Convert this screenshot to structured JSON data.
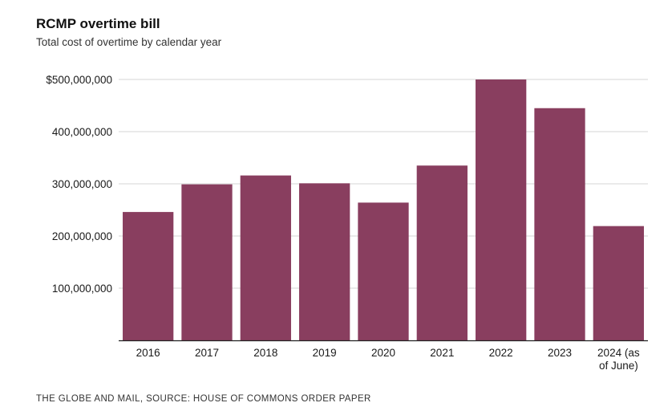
{
  "chart_data": {
    "type": "bar",
    "title": "RCMP overtime bill",
    "subtitle": "Total cost of overtime by calendar year",
    "xlabel": "",
    "ylabel": "",
    "categories": [
      "2016",
      "2017",
      "2018",
      "2019",
      "2020",
      "2021",
      "2022",
      "2023",
      "2024 (as of June)"
    ],
    "category_lines": [
      [
        "2016"
      ],
      [
        "2017"
      ],
      [
        "2018"
      ],
      [
        "2019"
      ],
      [
        "2020"
      ],
      [
        "2021"
      ],
      [
        "2022"
      ],
      [
        "2023"
      ],
      [
        "2024 (as",
        "of June)"
      ]
    ],
    "values": [
      246000000,
      299000000,
      316000000,
      301000000,
      264000000,
      335000000,
      500000000,
      445000000,
      219000000
    ],
    "ylim": [
      0,
      500000000
    ],
    "yticks": [
      100000000,
      200000000,
      300000000,
      400000000,
      500000000
    ],
    "ytick_labels": [
      "100,000,000",
      "200,000,000",
      "300,000,000",
      "400,000,000",
      "$500,000,000"
    ],
    "grid": true,
    "bar_color": "#893e5f",
    "source": "THE GLOBE AND MAIL, SOURCE: HOUSE OF COMMONS ORDER PAPER"
  }
}
